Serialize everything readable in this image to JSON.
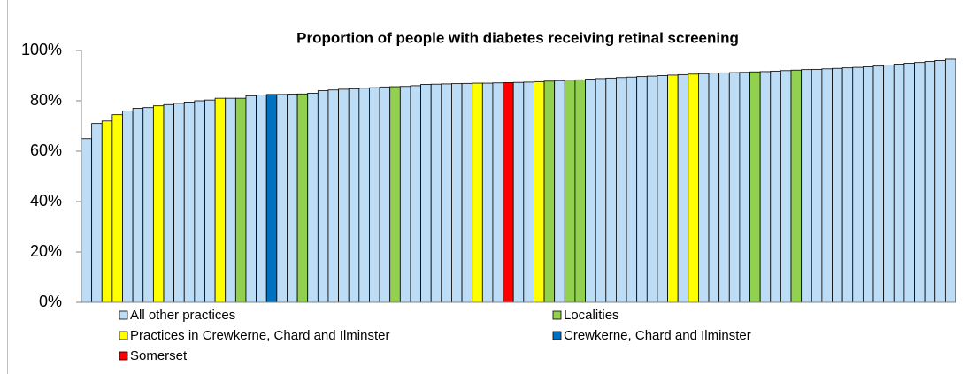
{
  "chart_data": {
    "type": "bar",
    "title": "Proportion of people with diabetes receiving retinal screening",
    "categories": [
      null,
      null,
      null,
      null,
      null,
      null,
      null,
      null,
      null,
      null,
      null,
      null,
      null,
      null,
      null,
      null,
      null,
      null,
      null,
      null,
      null,
      null,
      null,
      null,
      null,
      null,
      null,
      null,
      null,
      null,
      null,
      null,
      null,
      null,
      null,
      null,
      null,
      null,
      null,
      null,
      null,
      null,
      null,
      null,
      null,
      null,
      null,
      null,
      null,
      null,
      null,
      null,
      null,
      null,
      null,
      null,
      null,
      null,
      null,
      null,
      null,
      null,
      null,
      null,
      null,
      null,
      null,
      null,
      null,
      null,
      null,
      null,
      null,
      null,
      null,
      null,
      null,
      null,
      null,
      null,
      null,
      null,
      null,
      null,
      null
    ],
    "series": [
      {
        "name": "All other practices",
        "color": "#bddcf5",
        "values": [
          65,
          71,
          null,
          null,
          76,
          77,
          77.3,
          null,
          78.5,
          79,
          79.5,
          80,
          80.3,
          null,
          81,
          null,
          82,
          82.3,
          null,
          82.5,
          82.6,
          null,
          83,
          84,
          84.3,
          84.6,
          84.8,
          85,
          85.2,
          85.5,
          null,
          85.7,
          86,
          86.5,
          86.6,
          86.7,
          86.8,
          86.9,
          null,
          87,
          87.1,
          null,
          87.3,
          87.4,
          null,
          null,
          88,
          null,
          null,
          88.6,
          88.8,
          89,
          89.2,
          89.4,
          89.6,
          89.8,
          90,
          null,
          90.4,
          null,
          90.8,
          91,
          91.1,
          91.2,
          91.3,
          null,
          91.6,
          91.8,
          92,
          null,
          92.4,
          92.5,
          92.7,
          92.9,
          93.1,
          93.3,
          93.5,
          93.8,
          94.2,
          94.6,
          94.9,
          95.2,
          95.6,
          96,
          96.5
        ]
      },
      {
        "name": "Localities",
        "color": "#92d050",
        "values": [
          null,
          null,
          null,
          null,
          null,
          null,
          null,
          null,
          null,
          null,
          null,
          null,
          null,
          null,
          null,
          81,
          null,
          null,
          null,
          null,
          null,
          82.7,
          null,
          null,
          null,
          null,
          null,
          null,
          null,
          null,
          85.6,
          null,
          null,
          null,
          null,
          null,
          null,
          null,
          null,
          null,
          null,
          null,
          null,
          null,
          null,
          87.8,
          null,
          88.2,
          88.3,
          null,
          null,
          null,
          null,
          null,
          null,
          null,
          null,
          null,
          null,
          null,
          null,
          null,
          null,
          null,
          null,
          91.5,
          null,
          null,
          null,
          92.2,
          null,
          null,
          null,
          null,
          null,
          null,
          null,
          null,
          null,
          null,
          null,
          null,
          null,
          null,
          null
        ]
      },
      {
        "name": "Practices in Crewkerne, Chard and Ilminster",
        "color": "#ffff00",
        "values": [
          null,
          null,
          72,
          74.5,
          null,
          null,
          null,
          78,
          null,
          null,
          null,
          null,
          null,
          81,
          null,
          null,
          null,
          null,
          null,
          null,
          null,
          null,
          null,
          null,
          null,
          null,
          null,
          null,
          null,
          null,
          null,
          null,
          null,
          null,
          null,
          null,
          null,
          null,
          87,
          null,
          null,
          null,
          null,
          null,
          87.6,
          null,
          null,
          null,
          null,
          null,
          null,
          null,
          null,
          null,
          null,
          null,
          null,
          90.2,
          null,
          90.6,
          null,
          null,
          null,
          null,
          null,
          null,
          null,
          null,
          null,
          null,
          null,
          null,
          null,
          null,
          null,
          null,
          null,
          null,
          null,
          null,
          null,
          null,
          null,
          null,
          null
        ]
      },
      {
        "name": "Crewkerne, Chard and Ilminster",
        "color": "#0070c0",
        "values": [
          null,
          null,
          null,
          null,
          null,
          null,
          null,
          null,
          null,
          null,
          null,
          null,
          null,
          null,
          null,
          null,
          null,
          null,
          82.5,
          null,
          null,
          null,
          null,
          null,
          null,
          null,
          null,
          null,
          null,
          null,
          null,
          null,
          null,
          null,
          null,
          null,
          null,
          null,
          null,
          null,
          null,
          null,
          null,
          null,
          null,
          null,
          null,
          null,
          null,
          null,
          null,
          null,
          null,
          null,
          null,
          null,
          null,
          null,
          null,
          null,
          null,
          null,
          null,
          null,
          null,
          null,
          null,
          null,
          null,
          null,
          null,
          null,
          null,
          null,
          null,
          null,
          null,
          null,
          null,
          null,
          null,
          null,
          null,
          null,
          null
        ]
      },
      {
        "name": "Somerset",
        "color": "#ff0000",
        "values": [
          null,
          null,
          null,
          null,
          null,
          null,
          null,
          null,
          null,
          null,
          null,
          null,
          null,
          null,
          null,
          null,
          null,
          null,
          null,
          null,
          null,
          null,
          null,
          null,
          null,
          null,
          null,
          null,
          null,
          null,
          null,
          null,
          null,
          null,
          null,
          null,
          null,
          null,
          null,
          null,
          null,
          87.2,
          null,
          null,
          null,
          null,
          null,
          null,
          null,
          null,
          null,
          null,
          null,
          null,
          null,
          null,
          null,
          null,
          null,
          null,
          null,
          null,
          null,
          null,
          null,
          null,
          null,
          null,
          null,
          null,
          null,
          null,
          null,
          null,
          null,
          null,
          null,
          null,
          null,
          null,
          null,
          null,
          null,
          null,
          null
        ]
      }
    ],
    "ylim": [
      0,
      100
    ],
    "yticks": [
      {
        "value": 0,
        "label": "0%"
      },
      {
        "value": 20,
        "label": "20%"
      },
      {
        "value": 40,
        "label": "40%"
      },
      {
        "value": 60,
        "label": "60%"
      },
      {
        "value": 80,
        "label": "80%"
      },
      {
        "value": 100,
        "label": "100%"
      }
    ],
    "grid": false
  }
}
